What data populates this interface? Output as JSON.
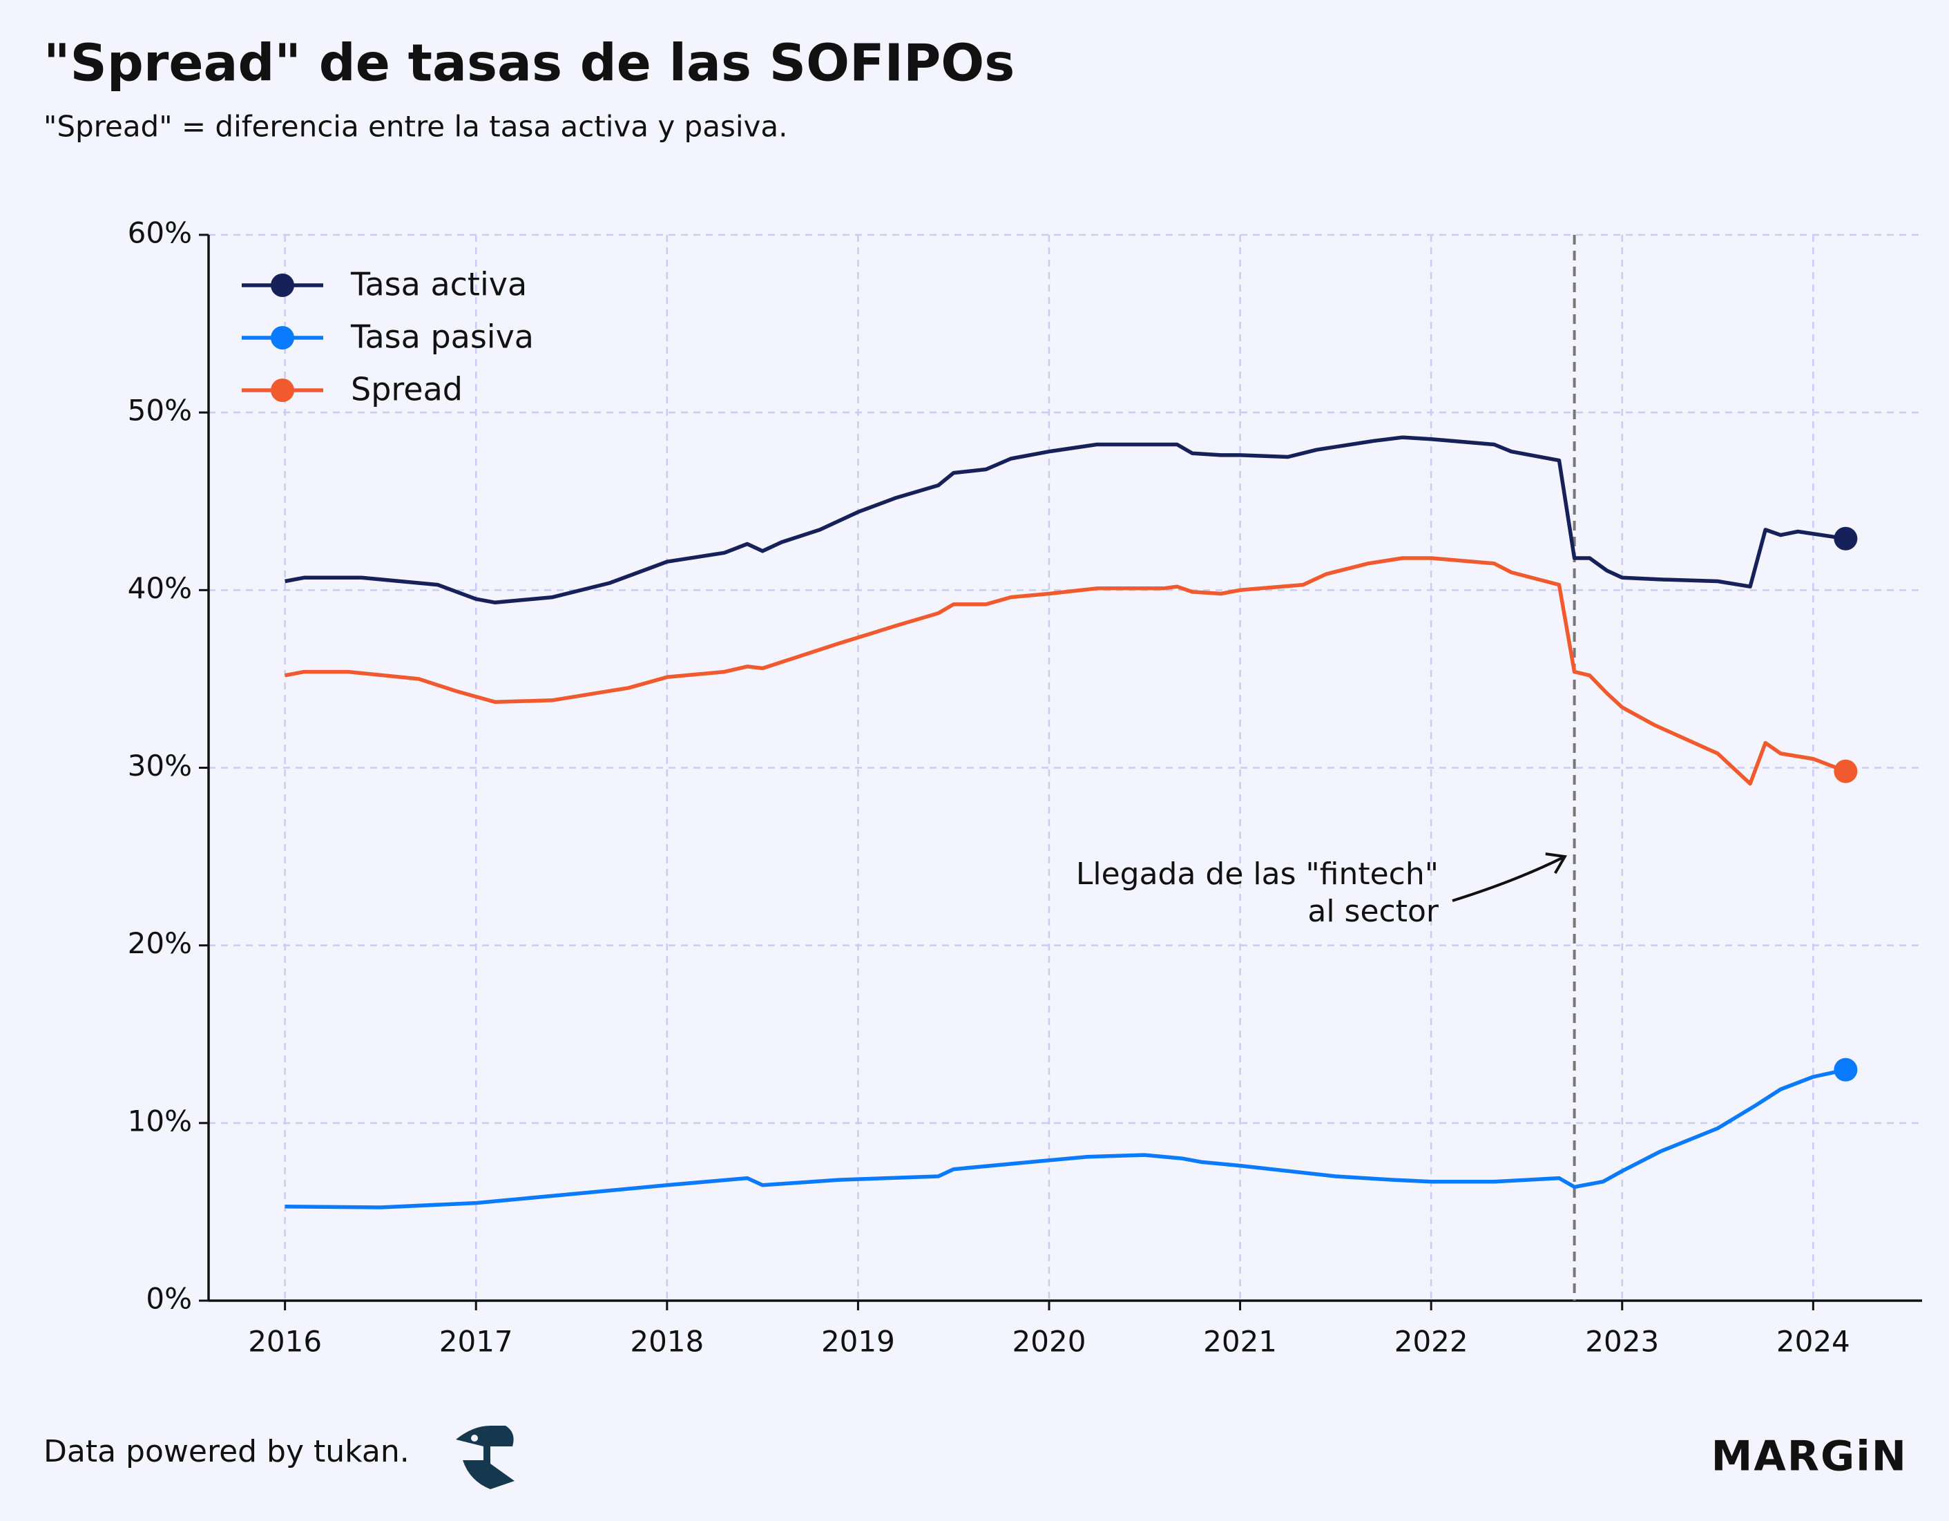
{
  "chart_data": {
    "type": "line",
    "title": "\"Spread\" de tasas de las SOFIPOs",
    "subtitle": "\"Spread\" = diferencia entre la tasa activa y pasiva.",
    "series": [
      {
        "name": "Tasa activa",
        "color": "#16215a",
        "x": [
          2016.0,
          2016.1,
          2016.4,
          2016.8,
          2017.0,
          2017.1,
          2017.4,
          2017.7,
          2017.9,
          2018.0,
          2018.3,
          2018.42,
          2018.5,
          2018.6,
          2018.8,
          2019.0,
          2019.2,
          2019.42,
          2019.5,
          2019.67,
          2019.8,
          2020.0,
          2020.25,
          2020.5,
          2020.67,
          2020.75,
          2020.9,
          2021.0,
          2021.25,
          2021.4,
          2021.7,
          2021.85,
          2022.0,
          2022.33,
          2022.42,
          2022.67,
          2022.75,
          2022.83,
          2022.92,
          2023.0,
          2023.2,
          2023.5,
          2023.67,
          2023.75,
          2023.83,
          2023.92,
          2024.17
        ],
        "values": [
          40.5,
          40.7,
          40.7,
          40.3,
          39.5,
          39.3,
          39.6,
          40.4,
          41.2,
          41.6,
          42.1,
          42.6,
          42.2,
          42.7,
          43.4,
          44.4,
          45.2,
          45.9,
          46.6,
          46.8,
          47.4,
          47.8,
          48.2,
          48.2,
          48.2,
          47.7,
          47.6,
          47.6,
          47.5,
          47.9,
          48.4,
          48.6,
          48.5,
          48.2,
          47.8,
          47.3,
          41.8,
          41.8,
          41.1,
          40.7,
          40.6,
          40.5,
          40.2,
          43.4,
          43.1,
          43.3,
          42.9
        ]
      },
      {
        "name": "Tasa pasiva",
        "color": "#0a7aff",
        "x": [
          2016.0,
          2016.5,
          2017.0,
          2017.5,
          2018.0,
          2018.42,
          2018.5,
          2018.9,
          2019.42,
          2019.5,
          2019.9,
          2020.2,
          2020.5,
          2020.7,
          2020.8,
          2021.0,
          2021.5,
          2021.8,
          2022.0,
          2022.33,
          2022.67,
          2022.75,
          2022.9,
          2023.0,
          2023.2,
          2023.5,
          2023.7,
          2023.83,
          2024.0,
          2024.17
        ],
        "values": [
          5.3,
          5.25,
          5.5,
          6.0,
          6.5,
          6.9,
          6.5,
          6.8,
          7.0,
          7.4,
          7.8,
          8.1,
          8.2,
          8.0,
          7.8,
          7.6,
          7.0,
          6.8,
          6.7,
          6.7,
          6.9,
          6.4,
          6.7,
          7.3,
          8.4,
          9.7,
          11.0,
          11.9,
          12.6,
          13.0
        ]
      },
      {
        "name": "Spread",
        "color": "#f05a2e",
        "x": [
          2016.0,
          2016.1,
          2016.33,
          2016.7,
          2016.9,
          2017.1,
          2017.4,
          2017.8,
          2018.0,
          2018.3,
          2018.42,
          2018.5,
          2018.7,
          2018.9,
          2019.2,
          2019.42,
          2019.5,
          2019.67,
          2019.8,
          2020.0,
          2020.25,
          2020.6,
          2020.67,
          2020.75,
          2020.9,
          2021.0,
          2021.33,
          2021.45,
          2021.67,
          2021.85,
          2022.0,
          2022.33,
          2022.42,
          2022.67,
          2022.75,
          2022.83,
          2022.92,
          2023.0,
          2023.17,
          2023.5,
          2023.67,
          2023.75,
          2023.83,
          2024.0,
          2024.17
        ],
        "values": [
          35.2,
          35.4,
          35.4,
          35.0,
          34.3,
          33.7,
          33.8,
          34.5,
          35.1,
          35.4,
          35.7,
          35.6,
          36.3,
          37.0,
          38.0,
          38.7,
          39.2,
          39.2,
          39.6,
          39.8,
          40.1,
          40.1,
          40.2,
          39.9,
          39.8,
          40.0,
          40.3,
          40.9,
          41.5,
          41.8,
          41.8,
          41.5,
          41.0,
          40.3,
          35.4,
          35.2,
          34.2,
          33.4,
          32.4,
          30.8,
          29.1,
          31.4,
          30.8,
          30.5,
          29.8
        ]
      }
    ],
    "xlim": [
      2015.6,
      2024.57
    ],
    "xticks": [
      2016,
      2017,
      2018,
      2019,
      2020,
      2021,
      2022,
      2023,
      2024
    ],
    "ylim": [
      0,
      60
    ],
    "yticks": [
      {
        "value": 0,
        "label": "0%"
      },
      {
        "value": 10,
        "label": "10%"
      },
      {
        "value": 20,
        "label": "20%"
      },
      {
        "value": 30,
        "label": "30%"
      },
      {
        "value": 40,
        "label": "40%"
      },
      {
        "value": 50,
        "label": "50%"
      },
      {
        "value": 60,
        "label": "60%"
      }
    ],
    "grid": true,
    "legend": "upper left",
    "vline_x": 2022.75,
    "annotation": {
      "lines": [
        "Llegada de las \"fintech\"",
        "al sector"
      ],
      "xy": [
        2022.7,
        25
      ]
    },
    "source": "Data powered by tukan.",
    "brand": "MARGiN"
  }
}
